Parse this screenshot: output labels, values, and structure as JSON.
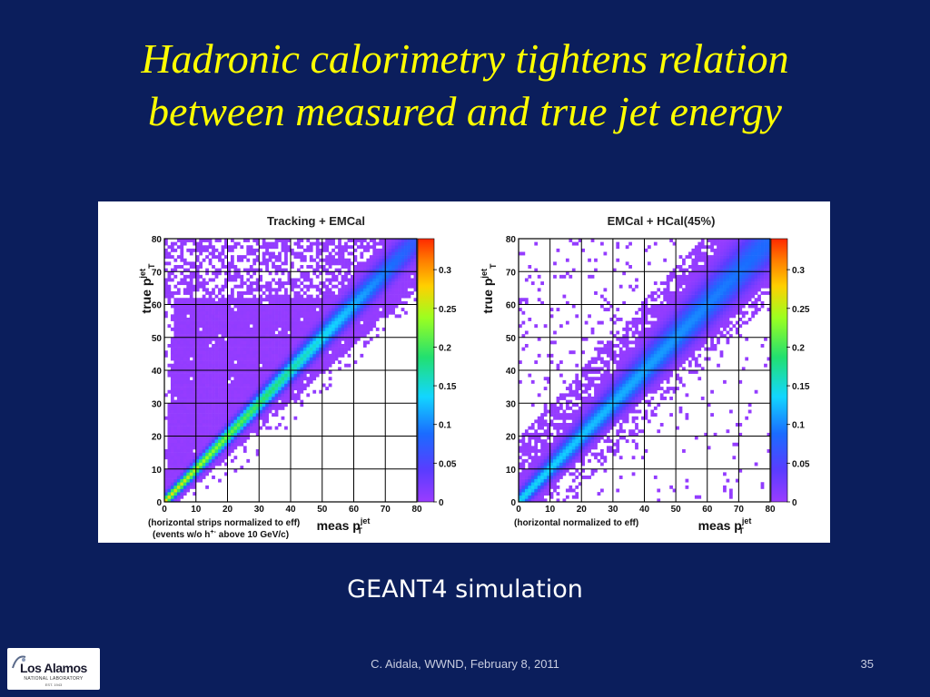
{
  "slide": {
    "title_line1": "Hadronic calorimetry tightens relation",
    "title_line2": "between measured and true jet energy",
    "caption": "GEANT4 simulation",
    "footer": "C. Aidala, WWND, February 8, 2011",
    "page_number": "35",
    "logo": {
      "name": "Los Alamos",
      "subtitle": "NATIONAL LABORATORY",
      "est": "EST. 1943"
    }
  },
  "colors": {
    "background": "#0b1e5c",
    "title": "#ffff00",
    "heat_low": "#9a3cff",
    "heat_high": "#ff2a00"
  },
  "chart_data": [
    {
      "type": "heatmap",
      "title": "Tracking + EMCal",
      "xlabel": "meas p",
      "xlabel_sup": "jet",
      "xlabel_sub": "T",
      "ylabel": "true p",
      "ylabel_sup": "jet",
      "ylabel_sub": "T",
      "note_line1": "(horizontal strips normalized to eff)",
      "note_line2": "(events w/o h",
      "note_sup": "+-",
      "note_line2b": "above 10 GeV/c)",
      "xlim": [
        0,
        80
      ],
      "ylim": [
        0,
        80
      ],
      "xticks": [
        "0",
        "10",
        "20",
        "30",
        "40",
        "50",
        "60",
        "70",
        "80"
      ],
      "yticks": [
        "0",
        "10",
        "20",
        "30",
        "40",
        "50",
        "60",
        "70",
        "80"
      ],
      "zlim": [
        0,
        0.34
      ],
      "zticks": [
        "0",
        "0.05",
        "0.1",
        "0.15",
        "0.2",
        "0.25",
        "0.3"
      ],
      "grid": true,
      "ridge": "diagonal y = x, broad filled band above diagonal, narrow below",
      "ridge_peak": 0.15
    },
    {
      "type": "heatmap",
      "title": "EMCal + HCal(45%)",
      "xlabel": "meas p",
      "xlabel_sup": "jet",
      "xlabel_sub": "T",
      "ylabel": "true p",
      "ylabel_sup": "jet",
      "ylabel_sub": "T",
      "note_line1": "(horizontal normalized to eff)",
      "xlim": [
        0,
        80
      ],
      "ylim": [
        0,
        80
      ],
      "xticks": [
        "0",
        "10",
        "20",
        "30",
        "40",
        "50",
        "60",
        "70",
        "80"
      ],
      "yticks": [
        "0",
        "10",
        "20",
        "30",
        "40",
        "50",
        "60",
        "70",
        "80"
      ],
      "zlim": [
        0,
        0.34
      ],
      "zticks": [
        "0",
        "0.05",
        "0.1",
        "0.15",
        "0.2",
        "0.25",
        "0.3"
      ],
      "grid": true,
      "ridge": "diagonal y = x, narrow band",
      "ridge_peak": 0.12
    }
  ]
}
